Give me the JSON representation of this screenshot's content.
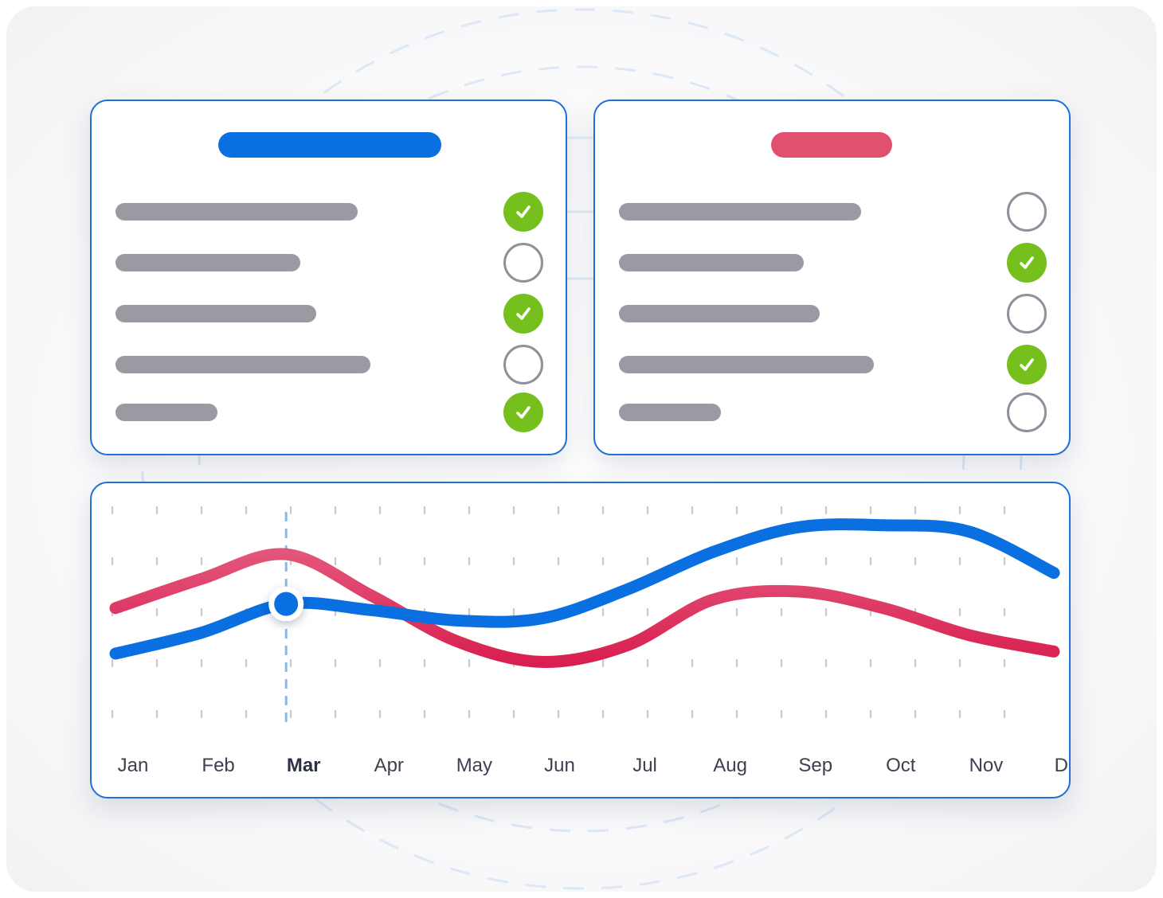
{
  "colors": {
    "primary": "#0a6fe0",
    "accent": "#e2506f",
    "success": "#76c01e",
    "placeholder": "#9a9aa3",
    "border": "#1f6fd6"
  },
  "panels": [
    {
      "id": "left",
      "header_color": "#0a6fe0",
      "tasks": [
        {
          "completed": true
        },
        {
          "completed": false
        },
        {
          "completed": true
        },
        {
          "completed": false
        },
        {
          "completed": true
        }
      ]
    },
    {
      "id": "right",
      "header_color": "#e2506f",
      "tasks": [
        {
          "completed": false
        },
        {
          "completed": true
        },
        {
          "completed": false
        },
        {
          "completed": true
        },
        {
          "completed": false
        }
      ]
    }
  ],
  "chart_data": {
    "type": "line",
    "categories": [
      "Jan",
      "Feb",
      "Mar",
      "Apr",
      "May",
      "Jun",
      "Jul",
      "Aug",
      "Sep",
      "Oct",
      "Nov",
      "Dec"
    ],
    "highlighted_category": "Mar",
    "ylim": [
      0,
      100
    ],
    "grid": "dotted",
    "series": [
      {
        "color": "#e2506f",
        "values": [
          52,
          66,
          78,
          58,
          36,
          26,
          34,
          56,
          60,
          52,
          39,
          31
        ]
      },
      {
        "color": "#0a6fe0",
        "values": [
          30,
          40,
          54,
          51,
          46,
          47,
          61,
          79,
          91,
          92,
          89,
          69
        ]
      }
    ]
  }
}
